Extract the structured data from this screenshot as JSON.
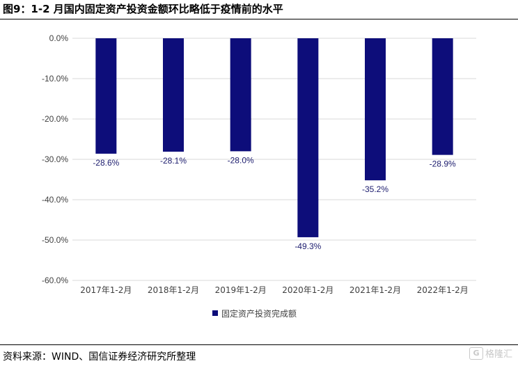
{
  "title": "图9：1-2 月国内固定资产投资金额环比略低于疫情前的水平",
  "source": "资料来源：WIND、国信证券经济研究所整理",
  "watermark": {
    "icon": "G",
    "text": "格隆汇"
  },
  "colors": {
    "bar": "#0d0d7a",
    "label": "#1c1c6e",
    "axis_text": "#404040",
    "grid": "#d9d9d9"
  },
  "chart_data": {
    "type": "bar",
    "categories": [
      "2017年1-2月",
      "2018年1-2月",
      "2019年1-2月",
      "2020年1-2月",
      "2021年1-2月",
      "2022年1-2月"
    ],
    "series": [
      {
        "name": "固定资产投资完成额",
        "values": [
          -28.6,
          -28.1,
          -28.0,
          -49.3,
          -35.2,
          -28.9
        ]
      }
    ],
    "data_labels": [
      "-28.6%",
      "-28.1%",
      "-28.0%",
      "-49.3%",
      "-35.2%",
      "-28.9%"
    ],
    "yticks": [
      "0.0%",
      "-10.0%",
      "-20.0%",
      "-30.0%",
      "-40.0%",
      "-50.0%",
      "-60.0%"
    ],
    "ytick_values": [
      0,
      -10,
      -20,
      -30,
      -40,
      -50,
      -60
    ],
    "ylim": [
      -60,
      0
    ],
    "grid": true,
    "legend": "bottom-center"
  }
}
